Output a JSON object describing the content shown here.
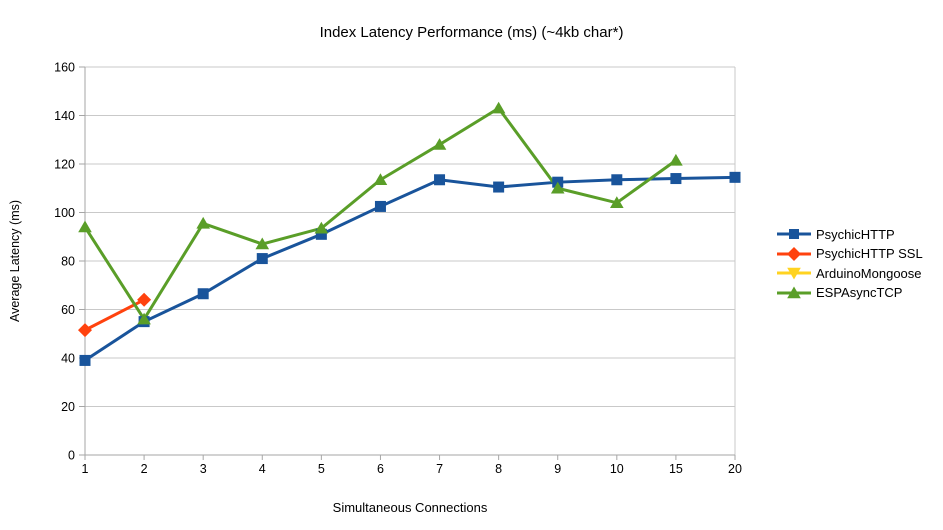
{
  "chart_data": {
    "type": "line",
    "title": "Index Latency Performance (ms) (~4kb char*)",
    "xlabel": "Simultaneous Connections",
    "ylabel": "Average Latency (ms)",
    "categories": [
      "1",
      "2",
      "3",
      "4",
      "5",
      "6",
      "7",
      "8",
      "9",
      "10",
      "15",
      "20"
    ],
    "ylim": [
      0,
      160
    ],
    "ytick_step": 20,
    "grid": "horizontal",
    "legend_position": "right",
    "colors": {
      "grid_line": "#c9c9c9",
      "axis_line": "#a6a6a6",
      "text": "#000000",
      "background": "#ffffff"
    },
    "series": [
      {
        "name": "PsychicHTTP",
        "color": "#19549B",
        "marker": "square",
        "values": [
          39,
          55,
          66.5,
          81,
          91,
          102.5,
          113.5,
          110.5,
          112.5,
          113.5,
          114,
          114.5
        ]
      },
      {
        "name": "PsychicHTTP SSL",
        "color": "#FF420E",
        "marker": "diamond",
        "values": [
          51.5,
          64,
          null,
          null,
          null,
          null,
          null,
          null,
          null,
          null,
          null,
          null
        ]
      },
      {
        "name": "ArduinoMongoose",
        "color": "#FFD320",
        "marker": "triangle-down",
        "values": [
          null,
          null,
          null,
          null,
          null,
          null,
          null,
          null,
          null,
          null,
          null,
          null
        ]
      },
      {
        "name": "ESPAsyncTCP",
        "color": "#5A9E28",
        "marker": "triangle-up",
        "values": [
          94,
          56,
          95.5,
          87,
          93.5,
          113.5,
          128,
          143,
          110,
          104,
          121.5,
          null
        ]
      }
    ]
  }
}
